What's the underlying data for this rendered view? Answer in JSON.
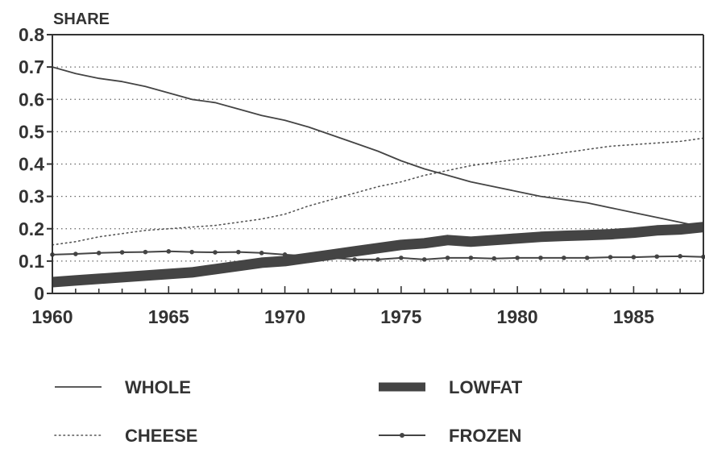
{
  "chart_data": {
    "type": "line",
    "title": "",
    "ylabel": "SHARE",
    "xlabel": "",
    "xlim": [
      1960,
      1988
    ],
    "ylim": [
      0,
      0.8
    ],
    "x_ticks": [
      1960,
      1965,
      1970,
      1975,
      1980,
      1985
    ],
    "y_ticks": [
      0,
      0.1,
      0.2,
      0.3,
      0.4,
      0.5,
      0.6,
      0.7,
      0.8
    ],
    "y_tick_labels": [
      "0",
      "0.1",
      "0.2",
      "0.3",
      "0.4",
      "0.5",
      "0.6",
      "0.7",
      "0.8"
    ],
    "grid": "horizontal dotted",
    "legend_position": "bottom",
    "x": [
      1960,
      1961,
      1962,
      1963,
      1964,
      1965,
      1966,
      1967,
      1968,
      1969,
      1970,
      1971,
      1972,
      1973,
      1974,
      1975,
      1976,
      1977,
      1978,
      1979,
      1980,
      1981,
      1982,
      1983,
      1984,
      1985,
      1986,
      1987,
      1988
    ],
    "series": [
      {
        "name": "WHOLE",
        "style": "thin-solid",
        "color": "#444444",
        "values": [
          0.7,
          0.68,
          0.665,
          0.655,
          0.64,
          0.62,
          0.6,
          0.59,
          0.57,
          0.55,
          0.535,
          0.515,
          0.49,
          0.465,
          0.44,
          0.41,
          0.385,
          0.365,
          0.345,
          0.33,
          0.315,
          0.3,
          0.29,
          0.28,
          0.265,
          0.25,
          0.235,
          0.22,
          0.205
        ]
      },
      {
        "name": "CHEESE",
        "style": "dotted",
        "color": "#555555",
        "values": [
          0.15,
          0.16,
          0.175,
          0.185,
          0.195,
          0.2,
          0.205,
          0.21,
          0.22,
          0.23,
          0.245,
          0.27,
          0.29,
          0.31,
          0.33,
          0.345,
          0.365,
          0.38,
          0.395,
          0.405,
          0.415,
          0.425,
          0.435,
          0.445,
          0.455,
          0.46,
          0.465,
          0.47,
          0.48
        ]
      },
      {
        "name": "LOWFAT",
        "style": "thick-solid",
        "color": "#444444",
        "values": [
          0.035,
          0.04,
          0.045,
          0.05,
          0.055,
          0.06,
          0.065,
          0.075,
          0.085,
          0.095,
          0.1,
          0.11,
          0.12,
          0.13,
          0.14,
          0.15,
          0.155,
          0.165,
          0.16,
          0.165,
          0.17,
          0.175,
          0.178,
          0.18,
          0.183,
          0.188,
          0.195,
          0.198,
          0.205
        ]
      },
      {
        "name": "FROZEN",
        "style": "solid-with-markers",
        "color": "#444444",
        "values": [
          0.12,
          0.122,
          0.125,
          0.127,
          0.128,
          0.13,
          0.128,
          0.127,
          0.128,
          0.125,
          0.12,
          0.115,
          0.11,
          0.105,
          0.105,
          0.11,
          0.105,
          0.11,
          0.11,
          0.108,
          0.11,
          0.11,
          0.11,
          0.11,
          0.112,
          0.112,
          0.114,
          0.115,
          0.113
        ]
      }
    ]
  }
}
